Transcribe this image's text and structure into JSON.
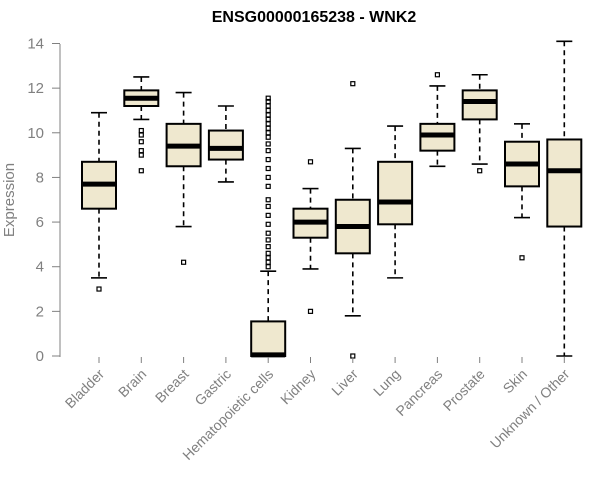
{
  "chart_data": {
    "type": "boxplot",
    "title": "ENSG00000165238 - WNK2",
    "xlabel": "",
    "ylabel": "Expression",
    "ylim": [
      0,
      14
    ],
    "yticks": [
      0,
      2,
      4,
      6,
      8,
      10,
      12,
      14
    ],
    "grid": false,
    "colors": {
      "box_fill": "#efe8cf",
      "axis": "#808080",
      "line": "#000000"
    },
    "categories": [
      "Bladder",
      "Brain",
      "Breast",
      "Gastric",
      "Hematopoietic cells",
      "Kidney",
      "Liver",
      "Lung",
      "Pancreas",
      "Prostate",
      "Skin",
      "Unknown / Other"
    ],
    "boxes": [
      {
        "name": "Bladder",
        "whisker_low": 3.5,
        "q1": 6.6,
        "median": 7.7,
        "q3": 8.7,
        "whisker_high": 10.9,
        "outliers": [
          3.0
        ]
      },
      {
        "name": "Brain",
        "whisker_low": 10.6,
        "q1": 11.2,
        "median": 11.55,
        "q3": 11.9,
        "whisker_high": 12.5,
        "outliers": [
          10.1,
          9.9,
          9.6,
          9.2,
          9.0,
          8.3
        ]
      },
      {
        "name": "Breast",
        "whisker_low": 5.8,
        "q1": 8.5,
        "median": 9.4,
        "q3": 10.4,
        "whisker_high": 11.8,
        "outliers": [
          4.2
        ]
      },
      {
        "name": "Gastric",
        "whisker_low": 7.8,
        "q1": 8.8,
        "median": 9.3,
        "q3": 10.1,
        "whisker_high": 11.2,
        "outliers": []
      },
      {
        "name": "Hematopoietic cells",
        "whisker_low": 0.0,
        "q1": 0.0,
        "median": 0.05,
        "q3": 1.55,
        "whisker_high": 3.8,
        "outliers": [
          4.0,
          4.2,
          4.4,
          4.6,
          4.9,
          5.2,
          5.5,
          5.9,
          6.3,
          6.7,
          7.0,
          7.6,
          8.0,
          8.4,
          8.8,
          9.2,
          9.5,
          9.8,
          10.0,
          10.2,
          10.4,
          10.6,
          10.8,
          11.0,
          11.2,
          11.4,
          11.55
        ]
      },
      {
        "name": "Kidney",
        "whisker_low": 3.9,
        "q1": 5.3,
        "median": 6.0,
        "q3": 6.6,
        "whisker_high": 7.5,
        "outliers": [
          8.7,
          2.0
        ]
      },
      {
        "name": "Liver",
        "whisker_low": 1.8,
        "q1": 4.6,
        "median": 5.8,
        "q3": 7.0,
        "whisker_high": 9.3,
        "outliers": [
          12.2,
          0.0
        ]
      },
      {
        "name": "Lung",
        "whisker_low": 3.5,
        "q1": 5.9,
        "median": 6.9,
        "q3": 8.7,
        "whisker_high": 10.3,
        "outliers": []
      },
      {
        "name": "Pancreas",
        "whisker_low": 8.5,
        "q1": 9.2,
        "median": 9.9,
        "q3": 10.4,
        "whisker_high": 12.1,
        "outliers": [
          12.6
        ]
      },
      {
        "name": "Prostate",
        "whisker_low": 8.6,
        "q1": 10.6,
        "median": 11.4,
        "q3": 11.9,
        "whisker_high": 12.6,
        "outliers": [
          8.3
        ]
      },
      {
        "name": "Skin",
        "whisker_low": 6.2,
        "q1": 7.6,
        "median": 8.6,
        "q3": 9.6,
        "whisker_high": 10.4,
        "outliers": [
          4.4
        ]
      },
      {
        "name": "Unknown / Other",
        "whisker_low": 0.0,
        "q1": 5.8,
        "median": 8.3,
        "q3": 9.7,
        "whisker_high": 14.1,
        "outliers": []
      }
    ]
  }
}
